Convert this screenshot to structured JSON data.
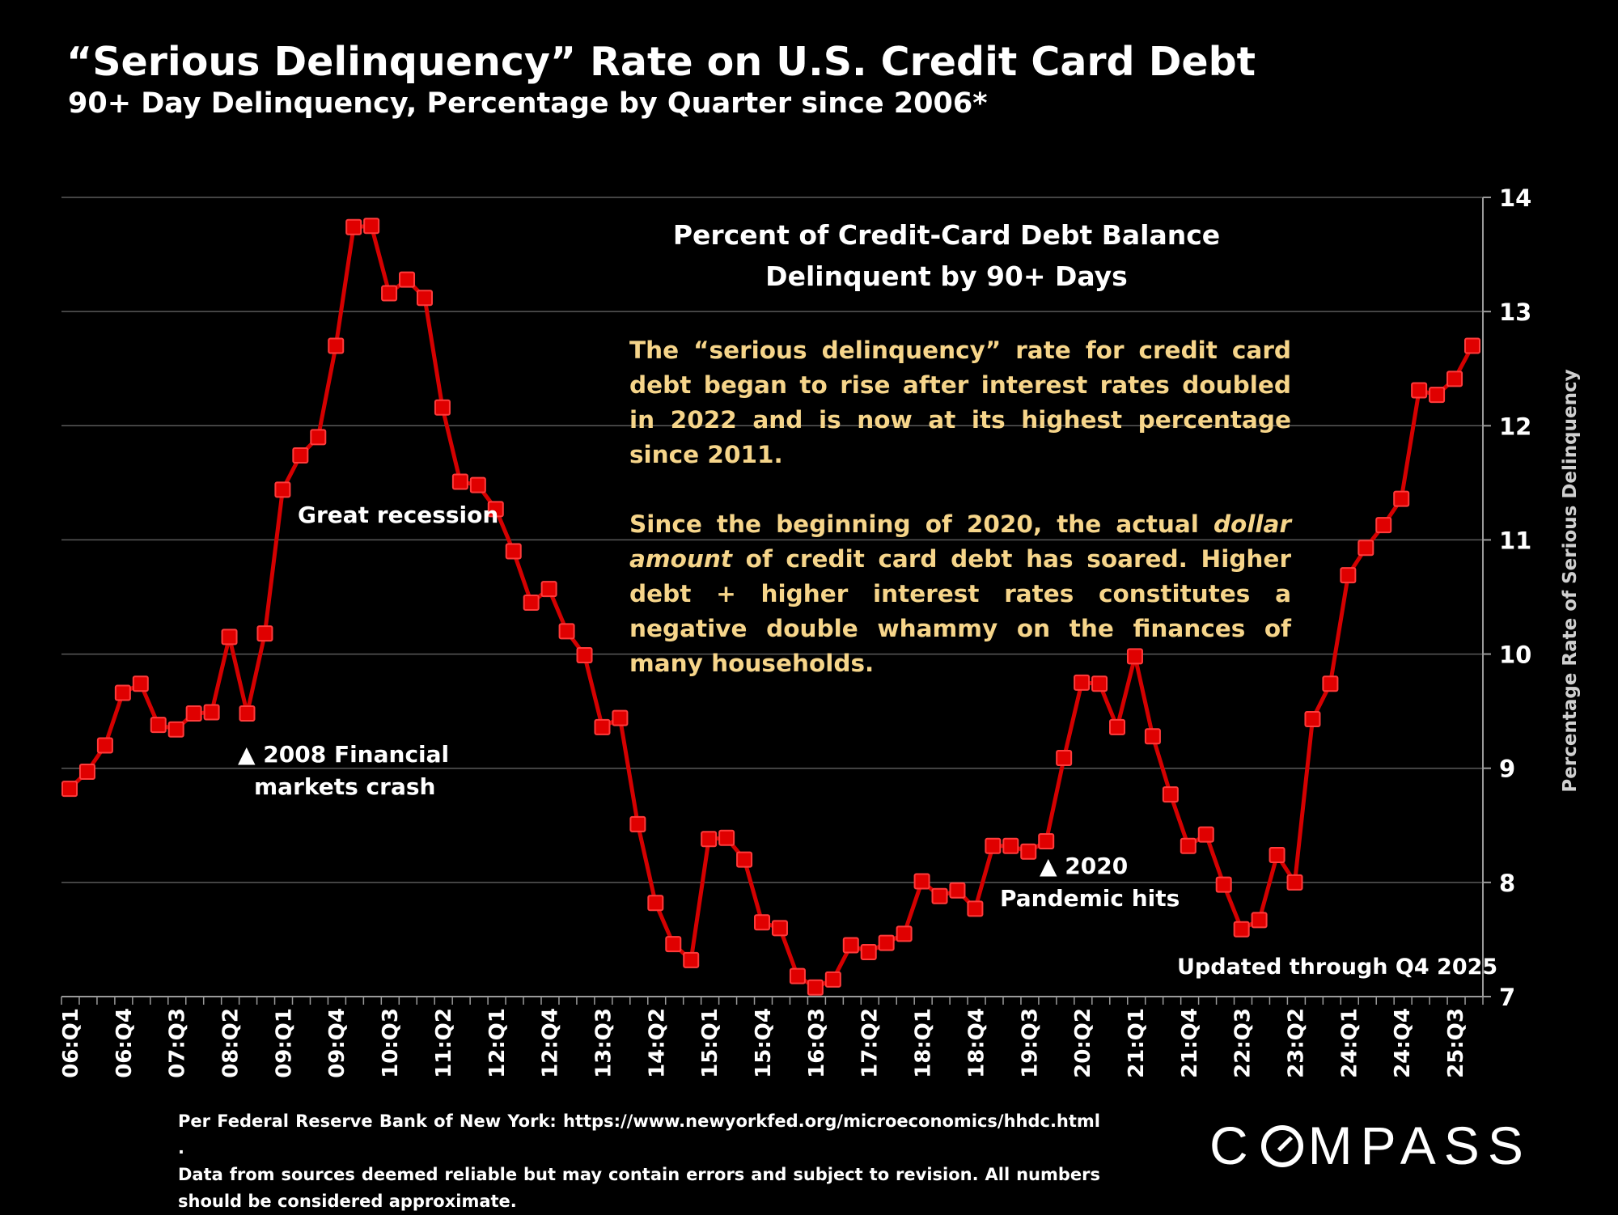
{
  "header": {
    "title": "“Serious Delinquency” Rate on U.S. Credit Card Debt",
    "subtitle": "90+ Day Delinquency, Percentage by Quarter since 2006*"
  },
  "info_box": {
    "title_line1": "Percent of Credit-Card Debt Balance",
    "title_line2": "Delinquent by 90+ Days",
    "para1": "The “serious delinquency” rate for credit card debt began to rise after interest rates doubled in 2022 and is now at its highest percentage since 2011.",
    "para2_before": "Since the beginning of 2020, the actual ",
    "para2_italic": "dollar amount",
    "para2_after": " of credit card debt has soared. Higher debt + higher interest rates constitutes a negative double whammy on the finances of many households."
  },
  "annotations": {
    "great_recession": "Great recession",
    "crash_2008_line1": "▲ 2008 Financial",
    "crash_2008_line2": "markets crash",
    "pandemic_line1": "▲ 2020",
    "pandemic_line2": "Pandemic hits",
    "updated": "Updated through Q4 2025"
  },
  "footnote": {
    "line1": "Per Federal Reserve Bank of New York: https://www.newyorkfed.org/microeconomics/hhdc.html .",
    "line2": "Data from sources deemed reliable but may contain errors and subject to revision. All numbers should be considered approximate."
  },
  "logo": {
    "before": "C",
    "after": "MPASS"
  },
  "colors": {
    "line": "#d40000",
    "marker": "#e00000",
    "grid": "#5a5a5a",
    "highlight_text": "#f6d58a"
  },
  "chart_data": {
    "type": "line",
    "title": "Percent of Credit-Card Debt Balance Delinquent by 90+ Days",
    "xlabel": "",
    "ylabel": "Percentage Rate of Serious Delinquency",
    "ylim": [
      7,
      14
    ],
    "yticks": [
      7,
      8,
      9,
      10,
      11,
      12,
      13,
      14
    ],
    "grid": true,
    "x": [
      "06:Q1",
      "06:Q2",
      "06:Q3",
      "06:Q4",
      "07:Q1",
      "07:Q2",
      "07:Q3",
      "07:Q4",
      "08:Q1",
      "08:Q2",
      "08:Q3",
      "08:Q4",
      "09:Q1",
      "09:Q2",
      "09:Q3",
      "09:Q4",
      "10:Q1",
      "10:Q2",
      "10:Q3",
      "10:Q4",
      "11:Q1",
      "11:Q2",
      "11:Q3",
      "11:Q4",
      "12:Q1",
      "12:Q2",
      "12:Q3",
      "12:Q4",
      "13:Q1",
      "13:Q2",
      "13:Q3",
      "13:Q4",
      "14:Q1",
      "14:Q2",
      "14:Q3",
      "14:Q4",
      "15:Q1",
      "15:Q2",
      "15:Q3",
      "15:Q4",
      "16:Q1",
      "16:Q2",
      "16:Q3",
      "16:Q4",
      "17:Q1",
      "17:Q2",
      "17:Q3",
      "17:Q4",
      "18:Q1",
      "18:Q2",
      "18:Q3",
      "18:Q4",
      "19:Q1",
      "19:Q2",
      "19:Q3",
      "19:Q4",
      "20:Q1",
      "20:Q2",
      "20:Q3",
      "20:Q4",
      "21:Q1",
      "21:Q2",
      "21:Q3",
      "21:Q4",
      "22:Q1",
      "22:Q2",
      "22:Q3",
      "22:Q4",
      "23:Q1",
      "23:Q2",
      "23:Q3",
      "23:Q4",
      "24:Q1",
      "24:Q2",
      "24:Q3",
      "24:Q4",
      "25:Q1",
      "25:Q2",
      "25:Q3",
      "25:Q4"
    ],
    "xtick_labels": [
      "06:Q1",
      "06:Q4",
      "07:Q3",
      "08:Q2",
      "09:Q1",
      "09:Q4",
      "10:Q3",
      "11:Q2",
      "12:Q1",
      "12:Q4",
      "13:Q3",
      "14:Q2",
      "15:Q1",
      "15:Q4",
      "16:Q3",
      "17:Q2",
      "18:Q1",
      "18:Q4",
      "19:Q3",
      "20:Q2",
      "21:Q1",
      "21:Q4",
      "22:Q3",
      "23:Q2",
      "24:Q1",
      "24:Q4",
      "25:Q3"
    ],
    "series": [
      {
        "name": "Serious delinquency rate (%)",
        "values": [
          8.82,
          8.97,
          9.2,
          9.66,
          9.74,
          9.38,
          9.34,
          9.48,
          9.49,
          10.15,
          9.48,
          10.18,
          11.44,
          11.74,
          11.9,
          12.7,
          13.74,
          13.75,
          13.16,
          13.28,
          13.12,
          12.16,
          11.51,
          11.48,
          11.27,
          10.9,
          10.45,
          10.57,
          10.2,
          9.99,
          9.36,
          9.44,
          8.51,
          7.82,
          7.46,
          7.32,
          8.38,
          8.39,
          8.2,
          7.65,
          7.6,
          7.18,
          7.08,
          7.15,
          7.45,
          7.39,
          7.47,
          7.55,
          8.01,
          7.88,
          7.93,
          7.77,
          8.32,
          8.32,
          8.27,
          8.36,
          9.09,
          9.75,
          9.74,
          9.36,
          9.98,
          9.28,
          8.77,
          8.32,
          8.42,
          7.98,
          7.59,
          7.67,
          8.24,
          8.0,
          9.43,
          9.74,
          10.69,
          10.93,
          11.13,
          11.36,
          12.31,
          12.27,
          12.41,
          12.7
        ]
      }
    ]
  }
}
